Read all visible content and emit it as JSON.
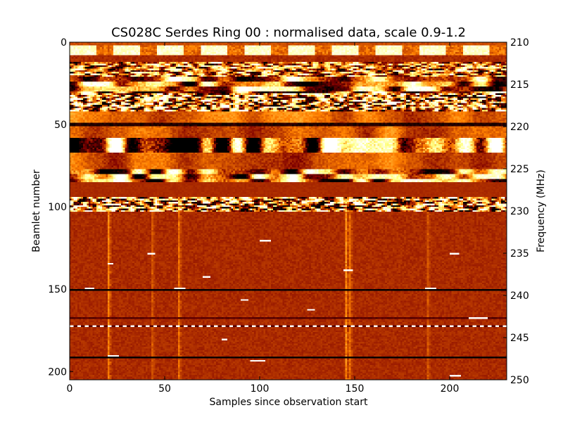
{
  "chart_data": {
    "type": "heatmap",
    "title": "CS028C Serdes Ring 00 : normalised data, scale 0.9-1.2",
    "xlabel": "Samples since observation start",
    "ylabel": "Beamlet number",
    "y2label": "Frequency (MHz)",
    "colormap": "afmhot",
    "color_scale": [
      0.9,
      1.2
    ],
    "xlim": [
      0,
      230
    ],
    "ylim": [
      205,
      0
    ],
    "y2lim": [
      250,
      210
    ],
    "x_ticks": [
      0,
      50,
      100,
      150,
      200
    ],
    "y_ticks": [
      0,
      50,
      100,
      150,
      200
    ],
    "y2_ticks": [
      210,
      215,
      220,
      225,
      230,
      235,
      240,
      245,
      250
    ],
    "grid": false,
    "n_rows": 205,
    "n_cols": 230,
    "bands": [
      {
        "rows": [
          0,
          2
        ],
        "pattern": "steady",
        "level": 1.02
      },
      {
        "rows": [
          2,
          8
        ],
        "pattern": "stripe-dashes",
        "level": 1.08
      },
      {
        "rows": [
          8,
          12
        ],
        "pattern": "steady",
        "level": 1.0
      },
      {
        "rows": [
          12,
          21
        ],
        "pattern": "speckle",
        "level": 1.05
      },
      {
        "rows": [
          21,
          31
        ],
        "pattern": "blobs",
        "level": 1.05
      },
      {
        "rows": [
          31,
          42
        ],
        "pattern": "speckle-strong",
        "level": 1.05
      },
      {
        "rows": [
          42,
          49
        ],
        "pattern": "mild",
        "level": 1.03
      },
      {
        "rows": [
          49,
          51
        ],
        "pattern": "dark-line",
        "level": 0.95
      },
      {
        "rows": [
          51,
          58
        ],
        "pattern": "mild",
        "level": 1.03
      },
      {
        "rows": [
          58,
          67
        ],
        "pattern": "blobs-strong",
        "level": 1.05
      },
      {
        "rows": [
          67,
          77
        ],
        "pattern": "mild",
        "level": 1.02
      },
      {
        "rows": [
          77,
          85
        ],
        "pattern": "blobs",
        "level": 1.04
      },
      {
        "rows": [
          85,
          94
        ],
        "pattern": "flat",
        "level": 1.0
      },
      {
        "rows": [
          94,
          103
        ],
        "pattern": "speckle-strong",
        "level": 1.05
      },
      {
        "rows": [
          103,
          205
        ],
        "pattern": "quiet",
        "level": 1.0
      }
    ],
    "dark_lines": [
      {
        "row": 150,
        "level": 0.9
      },
      {
        "row": 167,
        "level": 0.95
      },
      {
        "row": 191,
        "level": 0.9
      }
    ],
    "bright_columns": [
      {
        "col": 20,
        "level": 1.06
      },
      {
        "col": 43,
        "level": 1.03
      },
      {
        "col": 57,
        "level": 1.05
      },
      {
        "col": 145,
        "level": 1.07
      },
      {
        "col": 147,
        "level": 1.05
      },
      {
        "col": 188,
        "level": 1.03
      }
    ],
    "hot_pixels": [
      {
        "row": 120,
        "col": 100,
        "len": 6
      },
      {
        "row": 128,
        "col": 41,
        "len": 4
      },
      {
        "row": 128,
        "col": 200,
        "len": 5
      },
      {
        "row": 134,
        "col": 20,
        "len": 3
      },
      {
        "row": 138,
        "col": 144,
        "len": 5
      },
      {
        "row": 142,
        "col": 70,
        "len": 4
      },
      {
        "row": 149,
        "col": 8,
        "len": 5
      },
      {
        "row": 149,
        "col": 55,
        "len": 6
      },
      {
        "row": 149,
        "col": 187,
        "len": 6
      },
      {
        "row": 156,
        "col": 90,
        "len": 4
      },
      {
        "row": 162,
        "col": 125,
        "len": 4
      },
      {
        "row": 167,
        "col": 210,
        "len": 10
      },
      {
        "row": 172,
        "col": 0,
        "len": 230
      },
      {
        "row": 180,
        "col": 80,
        "len": 3
      },
      {
        "row": 190,
        "col": 20,
        "len": 6
      },
      {
        "row": 193,
        "col": 95,
        "len": 8
      },
      {
        "row": 202,
        "col": 200,
        "len": 6
      }
    ]
  }
}
